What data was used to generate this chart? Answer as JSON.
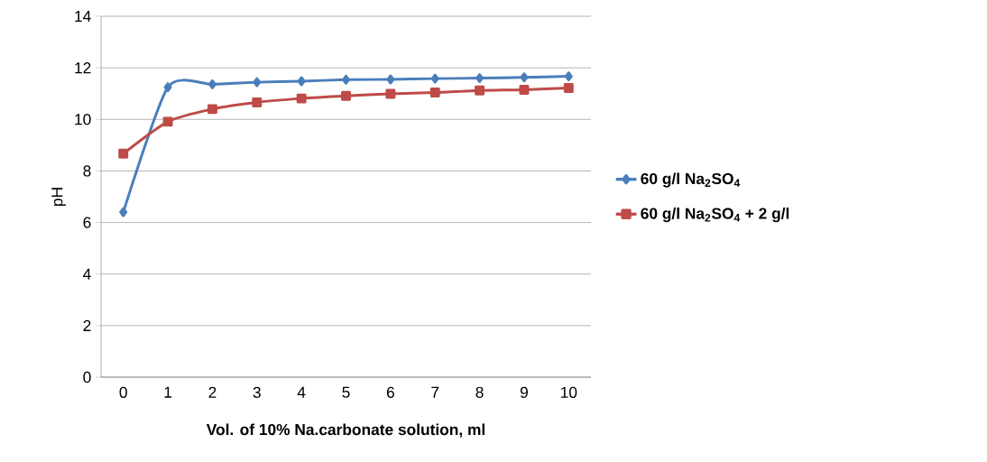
{
  "chart_data": {
    "type": "line",
    "xlabel": "Vol. of 10% Na.carbonate solution, ml",
    "ylabel": "pH",
    "categories": [
      "0",
      "1",
      "2",
      "3",
      "4",
      "5",
      "6",
      "7",
      "8",
      "9",
      "10"
    ],
    "series": [
      {
        "name": "60 g/l Na$_{2}$SO$_{4}$",
        "color": "#4a7ebb",
        "marker": "diamond",
        "values": [
          6.4,
          11.25,
          11.36,
          11.44,
          11.48,
          11.54,
          11.55,
          11.58,
          11.6,
          11.63,
          11.67
        ]
      },
      {
        "name": "60 g/l Na$_{2}$SO$_{4}$ + 2 g/l",
        "color": "#be4b48",
        "marker": "square",
        "values": [
          8.67,
          9.91,
          10.4,
          10.66,
          10.81,
          10.91,
          10.99,
          11.04,
          11.12,
          11.15,
          11.22
        ]
      }
    ],
    "ylim": [
      0,
      14
    ],
    "yticks": [
      0,
      2,
      4,
      6,
      8,
      10,
      12,
      14
    ],
    "grid": "y",
    "legend": "right",
    "line_style": "solid"
  }
}
